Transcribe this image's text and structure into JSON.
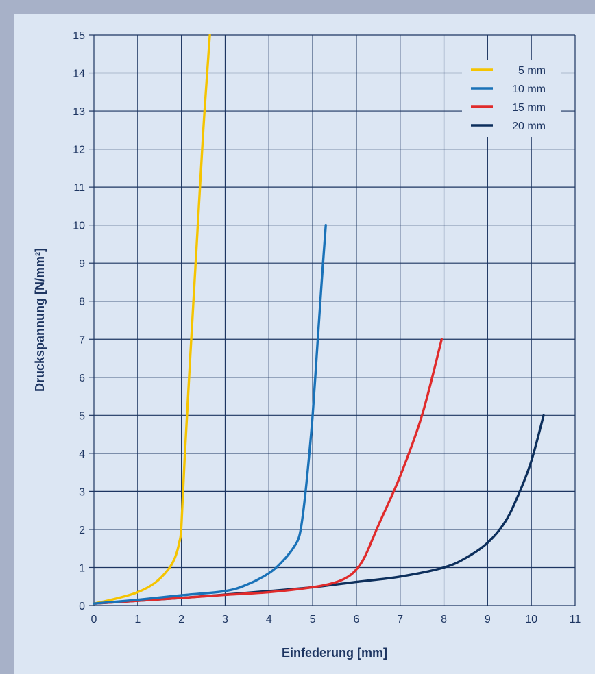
{
  "chart_data": {
    "type": "line",
    "xlabel": "Einfederung [mm]",
    "ylabel": "Druckspannung [N/mm²]",
    "xlim": [
      0,
      11
    ],
    "ylim": [
      0,
      15
    ],
    "x_ticks": [
      "0",
      "1",
      "2",
      "3",
      "4",
      "5",
      "6",
      "7",
      "8",
      "9",
      "10",
      "11"
    ],
    "y_ticks": [
      "0",
      "1",
      "2",
      "3",
      "4",
      "5",
      "6",
      "7",
      "8",
      "9",
      "10",
      "11",
      "12",
      "13",
      "14",
      "15"
    ],
    "grid": true,
    "legend_position": "top-right",
    "series": [
      {
        "name": "5 mm",
        "color": "#f5c400",
        "points": [
          [
            0,
            0.05
          ],
          [
            0.5,
            0.18
          ],
          [
            1,
            0.35
          ],
          [
            1.4,
            0.6
          ],
          [
            1.7,
            0.95
          ],
          [
            1.85,
            1.25
          ],
          [
            1.95,
            1.65
          ],
          [
            2.0,
            2.1
          ],
          [
            2.08,
            4.0
          ],
          [
            2.2,
            6.5
          ],
          [
            2.35,
            9.5
          ],
          [
            2.5,
            12.5
          ],
          [
            2.65,
            15.0
          ]
        ]
      },
      {
        "name": "10 mm",
        "color": "#1a72b8",
        "points": [
          [
            0,
            0.05
          ],
          [
            1,
            0.15
          ],
          [
            2,
            0.27
          ],
          [
            3,
            0.38
          ],
          [
            3.5,
            0.55
          ],
          [
            4,
            0.85
          ],
          [
            4.3,
            1.15
          ],
          [
            4.55,
            1.5
          ],
          [
            4.7,
            1.85
          ],
          [
            4.8,
            2.6
          ],
          [
            4.9,
            3.7
          ],
          [
            5.0,
            5.0
          ],
          [
            5.1,
            6.7
          ],
          [
            5.2,
            8.4
          ],
          [
            5.3,
            10.0
          ]
        ]
      },
      {
        "name": "15 mm",
        "color": "#e02b2b",
        "points": [
          [
            0,
            0.05
          ],
          [
            2,
            0.2
          ],
          [
            3,
            0.28
          ],
          [
            4,
            0.35
          ],
          [
            5,
            0.48
          ],
          [
            5.5,
            0.6
          ],
          [
            5.8,
            0.75
          ],
          [
            6.0,
            0.95
          ],
          [
            6.2,
            1.3
          ],
          [
            6.5,
            2.1
          ],
          [
            7.0,
            3.4
          ],
          [
            7.5,
            5.0
          ],
          [
            7.95,
            7.0
          ]
        ]
      },
      {
        "name": "20 mm",
        "color": "#0d2f5c",
        "points": [
          [
            0,
            0.05
          ],
          [
            2,
            0.2
          ],
          [
            4,
            0.38
          ],
          [
            5,
            0.48
          ],
          [
            6,
            0.62
          ],
          [
            7,
            0.76
          ],
          [
            8,
            1.0
          ],
          [
            8.5,
            1.25
          ],
          [
            9,
            1.65
          ],
          [
            9.4,
            2.2
          ],
          [
            9.7,
            2.9
          ],
          [
            10,
            3.8
          ],
          [
            10.28,
            5.0
          ]
        ]
      }
    ]
  }
}
